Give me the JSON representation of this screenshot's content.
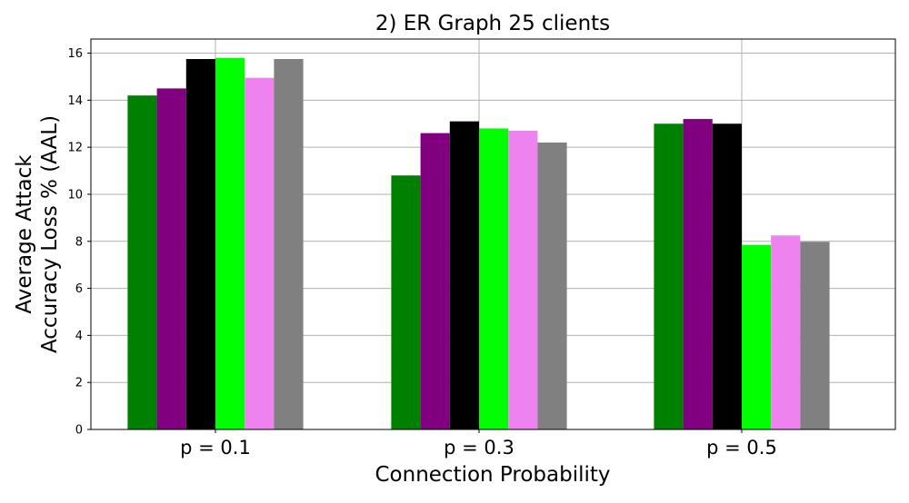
{
  "chart_data": {
    "type": "bar",
    "title": "2) ER Graph 25 clients",
    "xlabel": "Connection Probability",
    "ylabel_lines": [
      "Average Attack",
      "Accuracy Loss % (AAL)"
    ],
    "categories": [
      "p = 0.1",
      "p = 0.3",
      "p = 0.5"
    ],
    "ylim": [
      0,
      16.6
    ],
    "yticks": [
      0,
      2,
      4,
      6,
      8,
      10,
      12,
      14,
      16
    ],
    "grid": true,
    "legend": "none",
    "series": [
      {
        "color": "#008000",
        "values": [
          14.2,
          10.8,
          13.0
        ]
      },
      {
        "color": "#800080",
        "values": [
          14.5,
          12.6,
          13.2
        ]
      },
      {
        "color": "#000000",
        "values": [
          15.75,
          13.1,
          13.0
        ]
      },
      {
        "color": "#00ff00",
        "values": [
          15.8,
          12.8,
          7.85
        ]
      },
      {
        "color": "#ee82ee",
        "values": [
          14.95,
          12.7,
          8.25
        ]
      },
      {
        "color": "#808080",
        "values": [
          15.75,
          12.2,
          7.98
        ]
      }
    ]
  }
}
